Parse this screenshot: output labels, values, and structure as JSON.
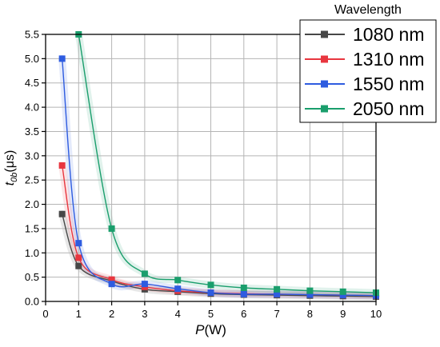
{
  "chart_data": {
    "type": "line",
    "xlabel": {
      "var": "P",
      "unit": "(W)"
    },
    "ylabel": {
      "var": "t",
      "sub": "0b",
      "unit": "(μs)"
    },
    "xlim": [
      0,
      10
    ],
    "ylim": [
      0,
      5.5
    ],
    "xticks": [
      0,
      1,
      2,
      3,
      4,
      5,
      6,
      7,
      8,
      9,
      10
    ],
    "yticks": [
      0.0,
      0.5,
      1.0,
      1.5,
      2.0,
      2.5,
      3.0,
      3.5,
      4.0,
      4.5,
      5.0,
      5.5
    ],
    "grid": true,
    "legend": {
      "title": "Wavelength",
      "placement": "top-right"
    },
    "series": [
      {
        "name": "1080 nm",
        "color": "#474747",
        "x": [
          0.5,
          1,
          2,
          3,
          4,
          5,
          6,
          7,
          8,
          9,
          10
        ],
        "y": [
          1.8,
          0.73,
          0.42,
          0.25,
          0.2,
          0.16,
          0.14,
          0.13,
          0.12,
          0.11,
          0.1
        ]
      },
      {
        "name": "1310 nm",
        "color": "#e8363f",
        "x": [
          0.5,
          1,
          2,
          3,
          4,
          5,
          6,
          7,
          8,
          9,
          10
        ],
        "y": [
          2.8,
          0.9,
          0.45,
          0.3,
          0.22,
          0.18,
          0.16,
          0.15,
          0.14,
          0.13,
          0.12
        ]
      },
      {
        "name": "1550 nm",
        "color": "#2e5ce0",
        "x": [
          0.5,
          1,
          2,
          3,
          4,
          5,
          6,
          7,
          8,
          9,
          10
        ],
        "y": [
          5.0,
          1.2,
          0.36,
          0.36,
          0.26,
          0.18,
          0.15,
          0.15,
          0.14,
          0.13,
          0.12
        ]
      },
      {
        "name": "2050 nm",
        "color": "#1a9e6c",
        "x": [
          1,
          2,
          3,
          4,
          5,
          6,
          7,
          8,
          9,
          10
        ],
        "y": [
          5.5,
          1.5,
          0.57,
          0.44,
          0.34,
          0.28,
          0.25,
          0.22,
          0.2,
          0.18
        ]
      }
    ]
  }
}
